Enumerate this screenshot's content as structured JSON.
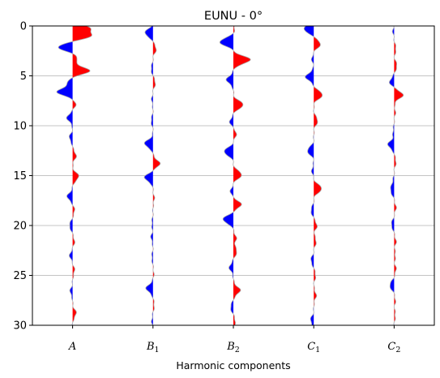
{
  "chart_data": {
    "type": "area",
    "title": "EUNU - 0°",
    "xlabel": "Harmonic components",
    "ylabel": "",
    "ylim": [
      30,
      0
    ],
    "yticks": [
      0,
      5,
      10,
      15,
      20,
      25,
      30
    ],
    "ytick_labels": [
      "0",
      "5",
      "10",
      "15",
      "20",
      "25",
      "30"
    ],
    "grid": "horizontal",
    "positive_color": "#ff0000",
    "negative_color": "#0000ff",
    "trace_color": "#aaaaaa",
    "categories": [
      {
        "main": "A",
        "sub": ""
      },
      {
        "main": "B",
        "sub": "1"
      },
      {
        "main": "B",
        "sub": "2"
      },
      {
        "main": "C",
        "sub": "1"
      },
      {
        "main": "C",
        "sub": "2"
      }
    ],
    "series": [
      {
        "depth": [
          0.2,
          1.0,
          2.1,
          3.2,
          4.5,
          5.5,
          6.6,
          7.8,
          9.2,
          11.2,
          13.0,
          15.1,
          17.1,
          18.5,
          20.0,
          21.6,
          23.0,
          24.5,
          26.6,
          28.8
        ],
        "amp": [
          0.95,
          1.05,
          -0.9,
          0.3,
          1.05,
          -0.3,
          -0.95,
          0.2,
          -0.35,
          -0.2,
          0.22,
          0.38,
          -0.33,
          0.12,
          -0.2,
          0.12,
          -0.18,
          0.12,
          -0.15,
          0.22
        ]
      },
      {
        "depth": [
          0.7,
          2.3,
          4.3,
          5.7,
          7.4,
          9.5,
          11.8,
          13.8,
          15.2,
          17.3,
          19.8,
          21.2,
          23.2,
          24.8,
          26.3,
          28.0,
          29.5
        ],
        "amp": [
          -0.5,
          0.2,
          -0.12,
          0.15,
          -0.08,
          -0.12,
          -0.52,
          0.42,
          -0.52,
          0.08,
          -0.08,
          -0.12,
          -0.08,
          0.05,
          -0.42,
          0.08,
          -0.08
        ]
      },
      {
        "depth": [
          0.3,
          1.6,
          3.4,
          5.4,
          7.9,
          9.6,
          10.8,
          12.6,
          14.9,
          16.6,
          17.9,
          19.4,
          21.3,
          22.6,
          24.2,
          26.5,
          28.2,
          29.6
        ],
        "amp": [
          0.08,
          -0.85,
          1.05,
          -0.42,
          0.62,
          -0.22,
          0.18,
          -0.58,
          0.52,
          -0.18,
          0.48,
          -0.65,
          0.18,
          0.22,
          -0.25,
          0.42,
          -0.18,
          0.12
        ]
      },
      {
        "depth": [
          0.3,
          1.8,
          3.3,
          5.1,
          6.9,
          9.5,
          12.5,
          14.5,
          16.3,
          18.5,
          20.0,
          21.6,
          23.5,
          25.0,
          27.0,
          29.5
        ],
        "amp": [
          -0.62,
          0.42,
          -0.12,
          -0.5,
          0.55,
          0.25,
          -0.4,
          -0.12,
          0.5,
          -0.18,
          0.2,
          0.15,
          -0.18,
          0.12,
          0.15,
          -0.2
        ]
      },
      {
        "depth": [
          0.5,
          2.3,
          4.0,
          5.6,
          6.9,
          8.6,
          10.6,
          11.9,
          13.6,
          15.7,
          16.5,
          18.2,
          19.9,
          21.6,
          23.0,
          24.4,
          26.0,
          27.5,
          29.0
        ],
        "amp": [
          -0.08,
          0.12,
          0.18,
          -0.28,
          0.55,
          0.08,
          -0.08,
          -0.38,
          0.12,
          -0.1,
          -0.22,
          0.12,
          -0.18,
          0.12,
          0.08,
          0.12,
          -0.28,
          0.08,
          0.08
        ]
      }
    ]
  }
}
